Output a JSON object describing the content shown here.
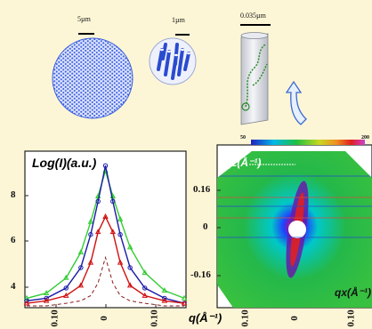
{
  "top": {
    "scale_labels": [
      "5µm",
      "1µm",
      "0.035µm"
    ]
  },
  "left_plot": {
    "ylabel": "Log(I)(a.u.)",
    "xlabel": "q(Å⁻¹)",
    "yticks": [
      "8",
      "6",
      "4"
    ],
    "xticks": [
      "0.10",
      "0",
      "0.10"
    ]
  },
  "right_plot": {
    "colorbar_min": "50",
    "colorbar_max": "200",
    "qz_label": "qz(Å⁻¹)",
    "qx_label": "qx(Å⁻¹)",
    "yticks": [
      "0.16",
      "0",
      "-0.16"
    ],
    "xticks": [
      "0.10",
      "0",
      "0.10"
    ]
  },
  "colors": {
    "background": "#fdf6d6",
    "pore_blue": "#3a5fe0",
    "green_series": "#33cc33",
    "blue_series": "#1a1aa8",
    "red_series": "#d01010",
    "dashed_series": "#8b1a1a"
  },
  "chart_data": {
    "type": "line",
    "x": [
      -0.16,
      -0.12,
      -0.08,
      -0.05,
      -0.03,
      -0.015,
      0,
      0.015,
      0.03,
      0.05,
      0.08,
      0.12,
      0.16
    ],
    "ylim": [
      3.5,
      9.5
    ],
    "series": [
      {
        "values": [
          3.8,
          4.0,
          4.6,
          5.6,
          6.8,
          7.8,
          8.8,
          7.8,
          6.9,
          5.8,
          4.8,
          4.1,
          3.8
        ]
      },
      {
        "values": [
          3.7,
          3.8,
          4.2,
          5.0,
          6.3,
          7.6,
          9.0,
          7.6,
          6.3,
          5.0,
          4.2,
          3.8,
          3.6
        ]
      },
      {
        "values": [
          3.6,
          3.7,
          3.9,
          4.3,
          5.2,
          6.4,
          7.0,
          6.4,
          5.2,
          4.3,
          3.9,
          3.7,
          3.6
        ]
      },
      {
        "values": [
          3.5,
          3.5,
          3.6,
          3.7,
          3.9,
          4.4,
          5.4,
          4.4,
          3.9,
          3.7,
          3.6,
          3.5,
          3.5
        ]
      }
    ]
  }
}
